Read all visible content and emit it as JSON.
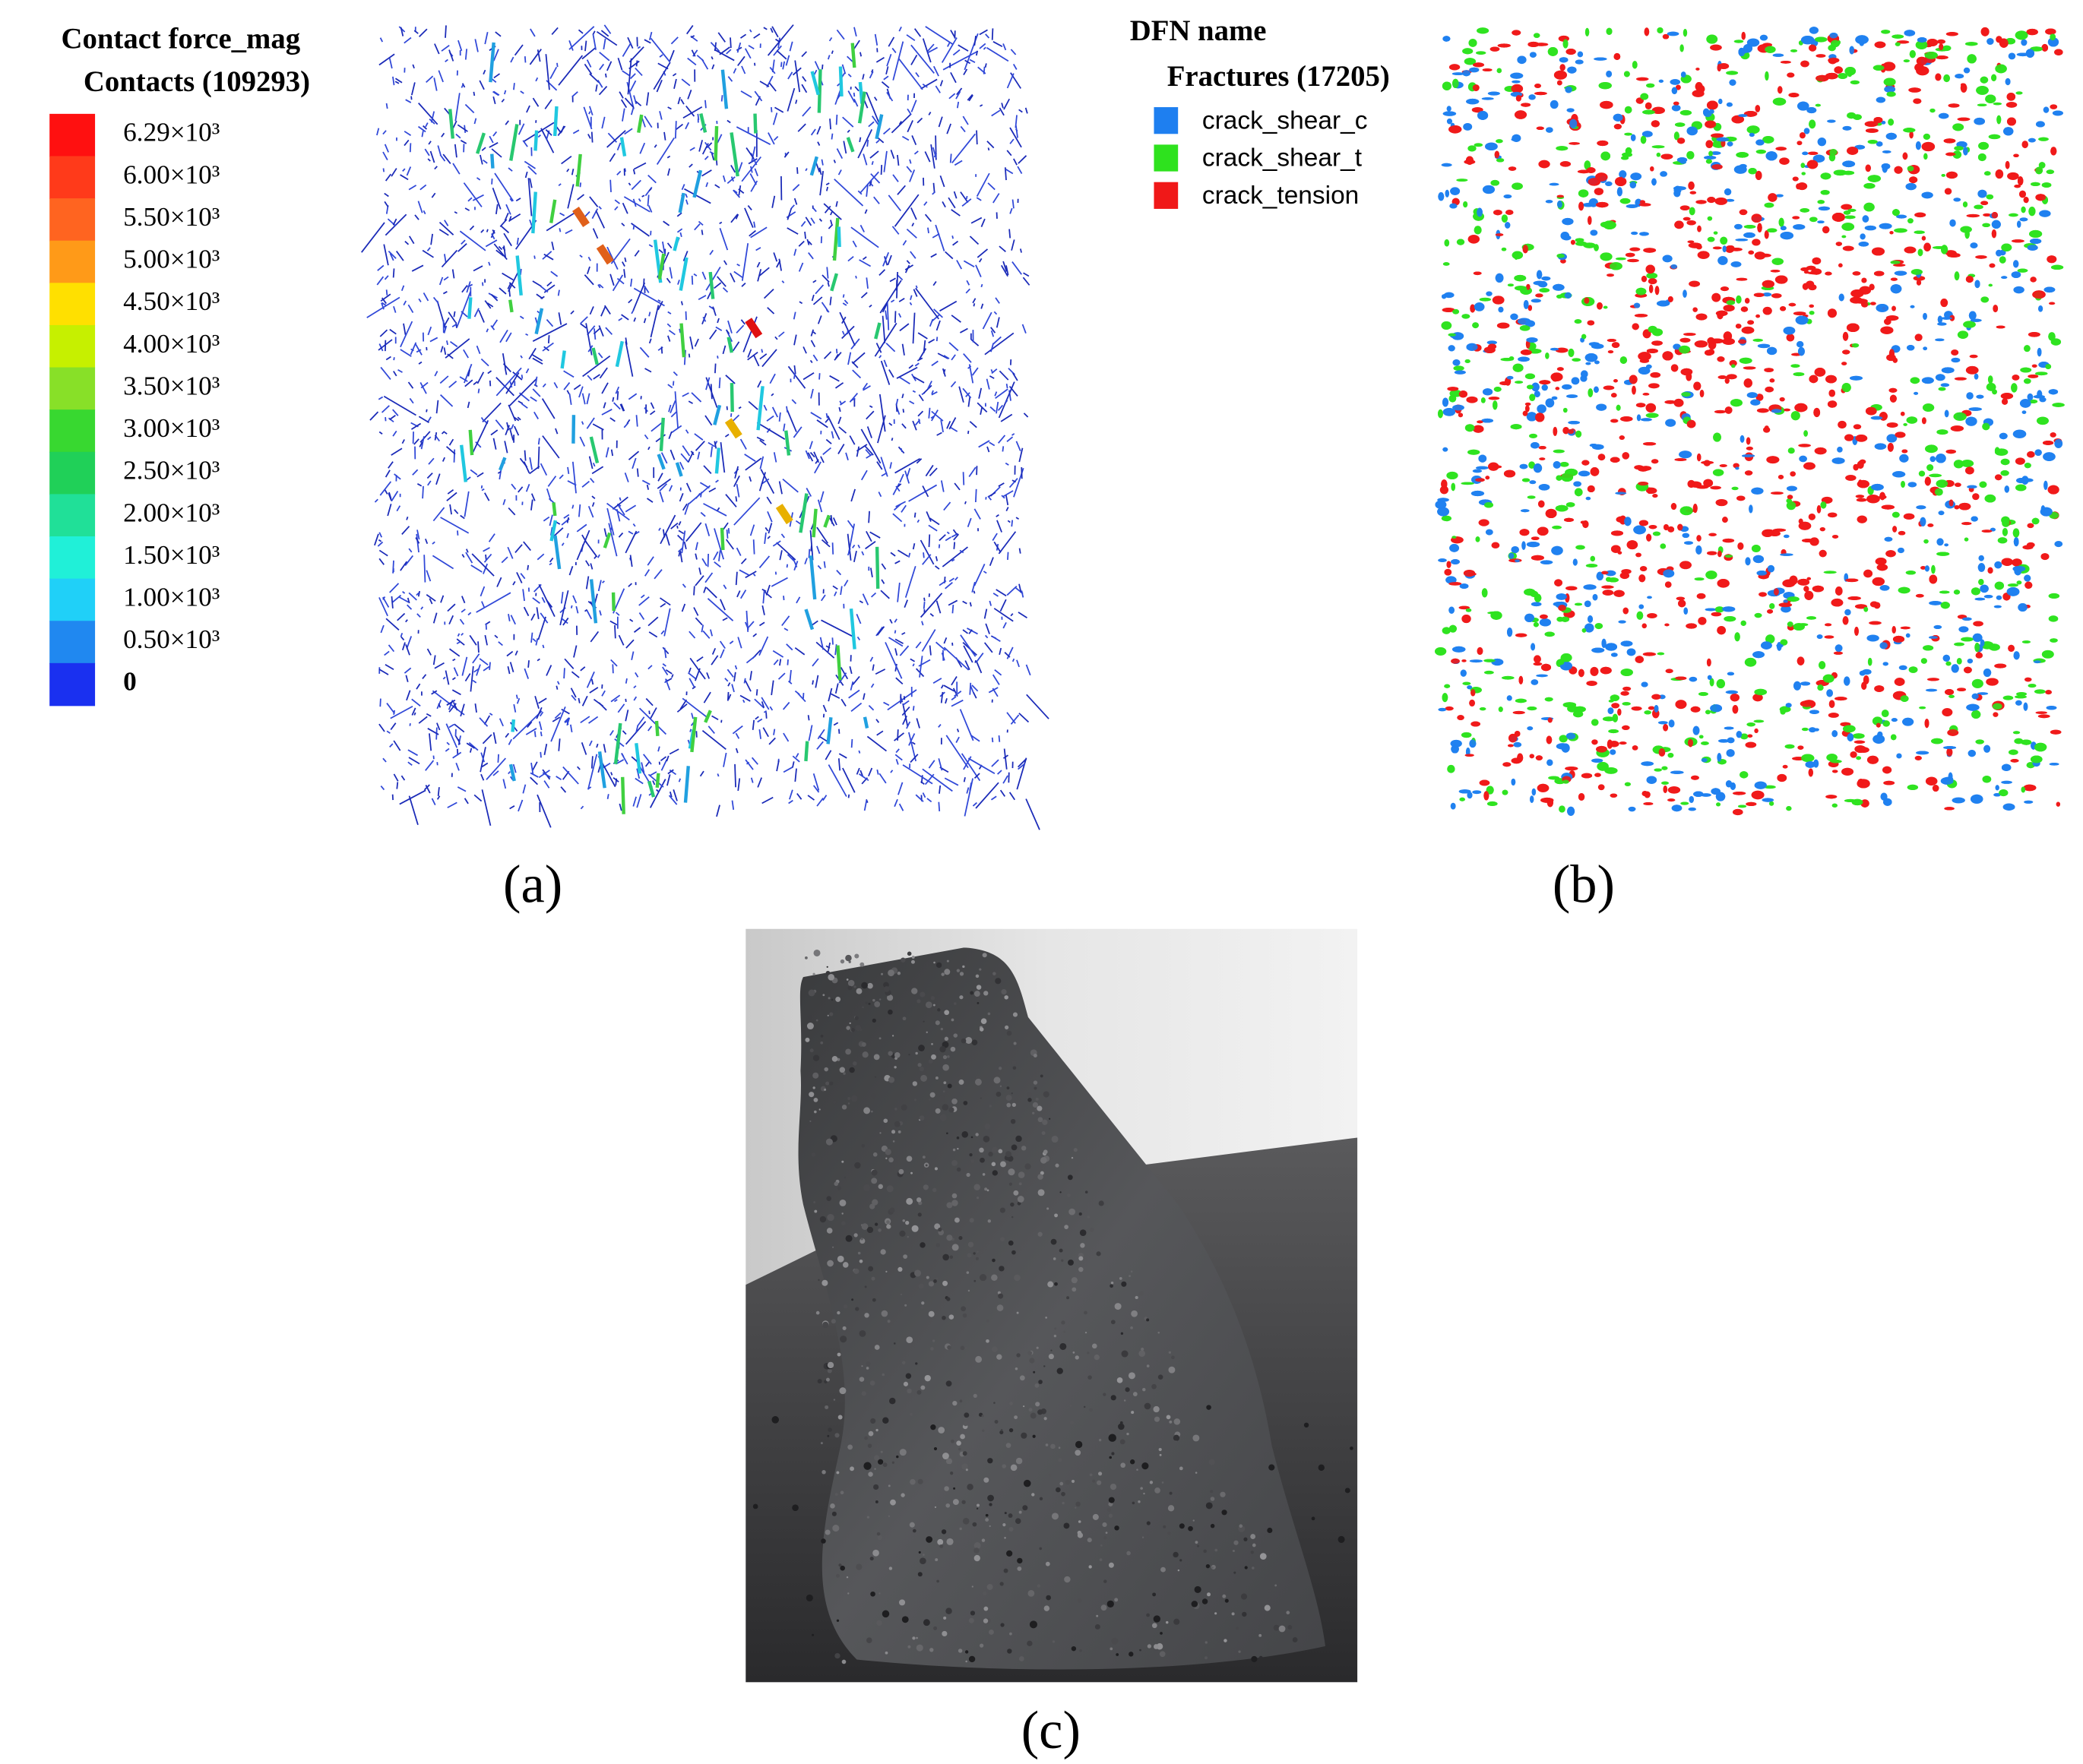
{
  "panel_a": {
    "legend_title": "Contact force_mag",
    "legend_subtitle": "Contacts (109293)",
    "scale": [
      {
        "label": "6.29×10³",
        "color": "#ff1010"
      },
      {
        "label": "6.00×10³",
        "color": "#ff3a1a"
      },
      {
        "label": "5.50×10³",
        "color": "#ff6420"
      },
      {
        "label": "5.00×10³",
        "color": "#ff9a18"
      },
      {
        "label": "4.50×10³",
        "color": "#ffe000"
      },
      {
        "label": "4.00×10³",
        "color": "#c6f000"
      },
      {
        "label": "3.50×10³",
        "color": "#88e028"
      },
      {
        "label": "3.00×10³",
        "color": "#38d830"
      },
      {
        "label": "2.50×10³",
        "color": "#20d058"
      },
      {
        "label": "2.00×10³",
        "color": "#20e098"
      },
      {
        "label": "1.50×10³",
        "color": "#20f0d8"
      },
      {
        "label": "1.00×10³",
        "color": "#20d0f8"
      },
      {
        "label": "0.50×10³",
        "color": "#2088f0"
      },
      {
        "label": "0",
        "color": "#1a30f0"
      }
    ],
    "caption": "(a)"
  },
  "panel_b": {
    "legend_title": "DFN name",
    "legend_subtitle": "Fractures (17205)",
    "items": [
      {
        "label": "crack_shear_c",
        "color": "#1e7ff0"
      },
      {
        "label": "crack_shear_t",
        "color": "#2ee21e"
      },
      {
        "label": "crack_tension",
        "color": "#f01818"
      }
    ],
    "caption": "(b)"
  },
  "panel_c": {
    "caption": "(c)"
  }
}
